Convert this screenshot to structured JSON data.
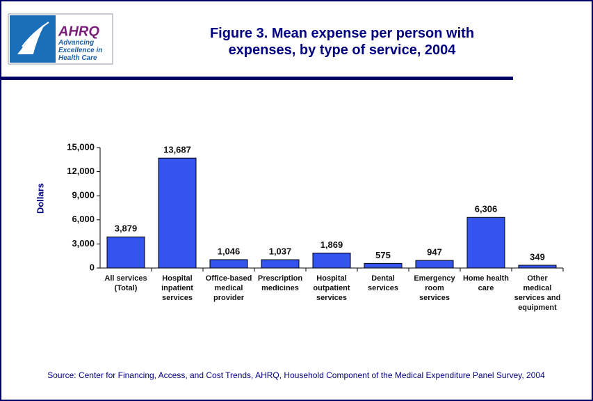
{
  "logo": {
    "name": "AHRQ",
    "tagline": "Advancing Excellence in Health Care"
  },
  "chart_data": {
    "type": "bar",
    "title": "Figure 3. Mean expense per person with expenses, by type of service, 2004",
    "y_label": "Dollars",
    "categories": [
      "All services (Total)",
      "Hospital inpatient services",
      "Office-based medical provider",
      "Prescription medicines",
      "Hospital outpatient services",
      "Dental services",
      "Emergency room services",
      "Home health care",
      "Other medical services and equipment"
    ],
    "values": [
      3879,
      13687,
      1046,
      1037,
      1869,
      575,
      947,
      6306,
      349
    ],
    "value_labels": [
      "3,879",
      "13,687",
      "1,046",
      "1,037",
      "1,869",
      "575",
      "947",
      "6,306",
      "349"
    ],
    "color": "#3355ee",
    "ylim": [
      0,
      15000
    ],
    "yticks": [
      0,
      {
        "value": 3000,
        "label": "3,000"
      },
      {
        "value": 6000,
        "label": "6,000"
      },
      {
        "value": 9000,
        "label": "9,000"
      },
      {
        "value": 12000,
        "label": "12,000"
      },
      {
        "value": 15000,
        "label": "15,000"
      }
    ],
    "source": "Source: Center for Financing, Access, and Cost Trends, AHRQ, Household Component of the Medical Expenditure Panel Survey, 2004"
  }
}
